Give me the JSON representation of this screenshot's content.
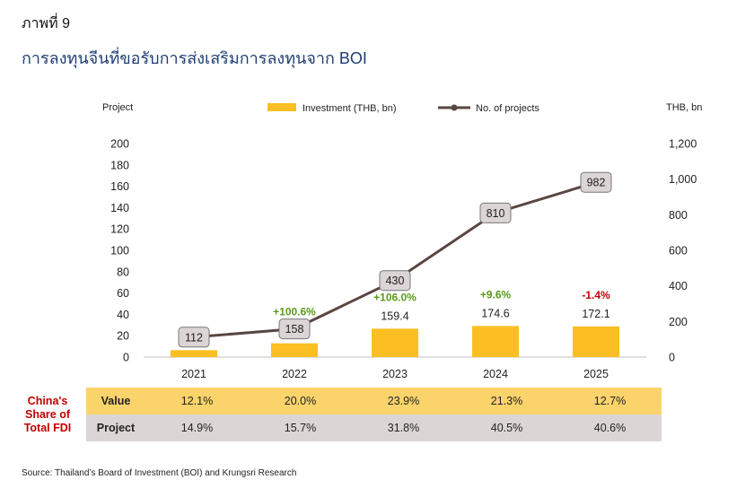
{
  "figure_label": "ภาพที่ 9",
  "title": "การลงทุนจีนที่ขอรับการส่งเสริมการลงทุนจาก BOI",
  "chart_data": {
    "type": "bar",
    "categories": [
      "2021",
      "2022",
      "2023",
      "2024",
      "2025"
    ],
    "series": [
      {
        "name": "Investment (THB, bn)",
        "type": "bar",
        "axis": "right",
        "values": [
          38.6,
          77.4,
          159.4,
          174.6,
          172.1
        ],
        "color": "#fbbf23"
      },
      {
        "name": "No. of projects",
        "type": "line",
        "axis": "right",
        "values": [
          112,
          158,
          430,
          810,
          982
        ],
        "color": "#5a4742"
      }
    ],
    "bar_value_labels": [
      "38.6",
      "77.4",
      "159.4",
      "174.6",
      "172.1"
    ],
    "project_labels": [
      "112",
      "158",
      "430",
      "810",
      "982"
    ],
    "growth_labels": [
      {
        "category": "2022",
        "text": "+100.6%",
        "color": "#5a9a1c"
      },
      {
        "category": "2023",
        "text": "+106.0%",
        "color": "#5a9a1c"
      },
      {
        "category": "2024",
        "text": "+9.6%",
        "color": "#5a9a1c"
      },
      {
        "category": "2025",
        "text": "-1.4%",
        "color": "#c00000"
      }
    ],
    "left_axis": {
      "label": "Project",
      "ticks": [
        "0",
        "20",
        "40",
        "60",
        "80",
        "100",
        "120",
        "140",
        "160",
        "180",
        "200"
      ],
      "range": [
        0,
        200
      ]
    },
    "right_axis": {
      "label": "THB, bn",
      "ticks": [
        "0",
        "200",
        "400",
        "600",
        "800",
        "1,000",
        "1,200"
      ],
      "range": [
        0,
        1200
      ]
    },
    "legend_position": "top",
    "grid": false
  },
  "fdi_table": {
    "label_lines": [
      "China's",
      "Share of",
      "Total FDI"
    ],
    "rows": [
      {
        "header": "Value",
        "cells": [
          "12.1%",
          "20.0%",
          "23.9%",
          "21.3%",
          "12.7%"
        ]
      },
      {
        "header": "Project",
        "cells": [
          "14.9%",
          "15.7%",
          "31.8%",
          "40.5%",
          "40.6%"
        ]
      }
    ]
  },
  "source": "Source: Thailand’s Board of Investment (BOI) and Krungsri Research"
}
